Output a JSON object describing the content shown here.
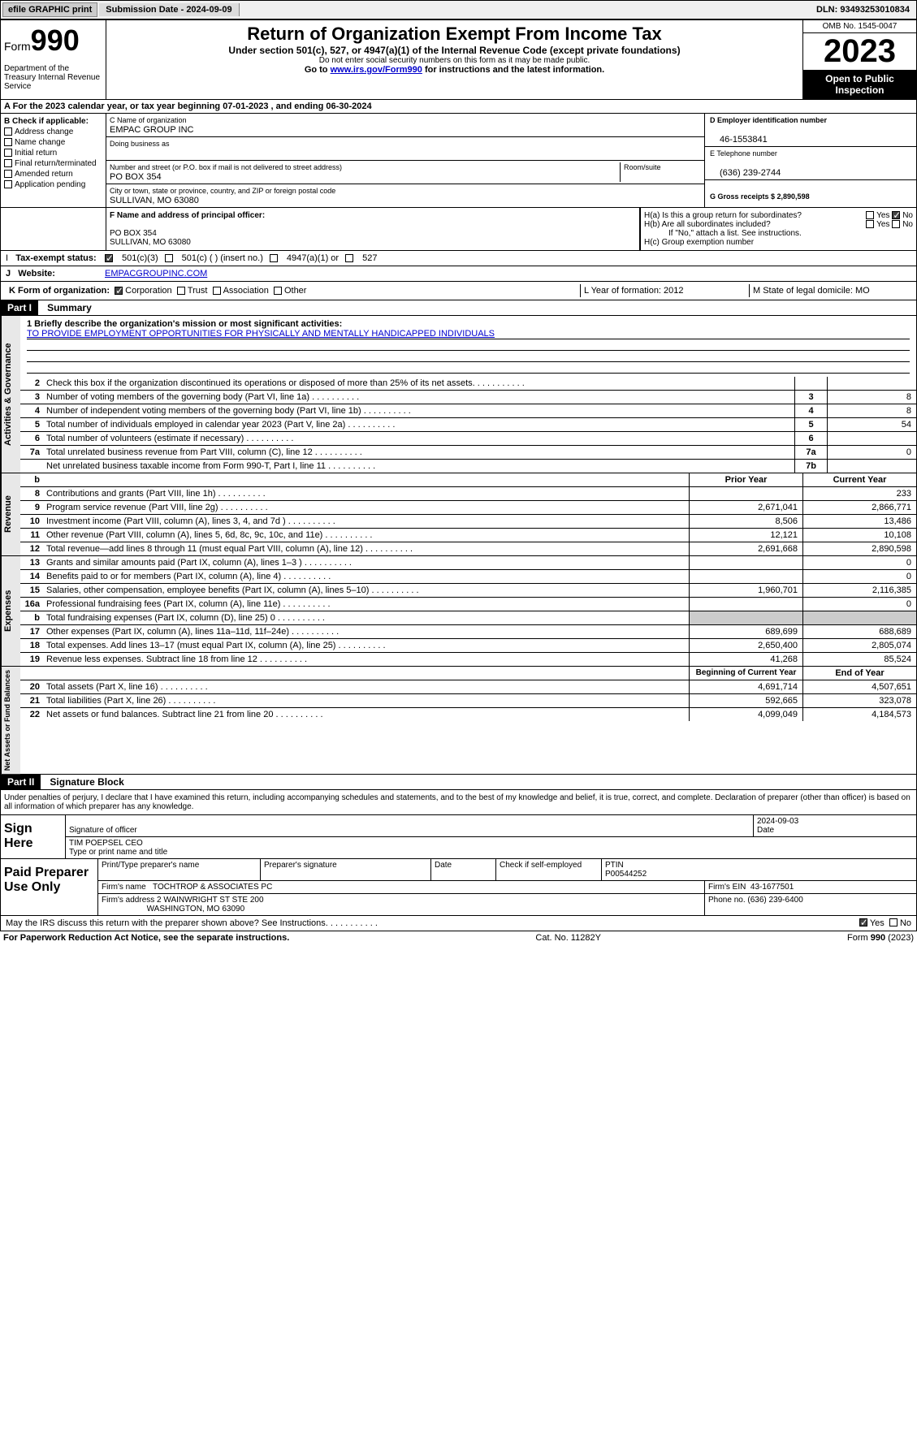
{
  "topbar": {
    "efile": "efile GRAPHIC print",
    "submission": "Submission Date - 2024-09-09",
    "dln": "DLN: 93493253010834"
  },
  "header": {
    "form_word": "Form",
    "form_no": "990",
    "title": "Return of Organization Exempt From Income Tax",
    "subtitle": "Under section 501(c), 527, or 4947(a)(1) of the Internal Revenue Code (except private foundations)",
    "note": "Do not enter social security numbers on this form as it may be made public.",
    "goto_pre": "Go to ",
    "goto_link": "www.irs.gov/Form990",
    "goto_post": " for instructions and the latest information.",
    "dept": "Department of the Treasury Internal Revenue Service",
    "omb": "OMB No. 1545-0047",
    "year": "2023",
    "openpub": "Open to Public Inspection"
  },
  "row_a": "A For the 2023 calendar year, or tax year beginning 07-01-2023   , and ending 06-30-2024",
  "col_b": {
    "hdr": "B Check if applicable:",
    "items": [
      "Address change",
      "Name change",
      "Initial return",
      "Final return/terminated",
      "Amended return",
      "Application pending"
    ]
  },
  "col_c": {
    "name_lbl": "C Name of organization",
    "name": "EMPAC GROUP INC",
    "dba_lbl": "Doing business as",
    "street_lbl": "Number and street (or P.O. box if mail is not delivered to street address)",
    "room_lbl": "Room/suite",
    "street": "PO BOX 354",
    "city_lbl": "City or town, state or province, country, and ZIP or foreign postal code",
    "city": "SULLIVAN, MO  63080"
  },
  "col_d": {
    "ein_lbl": "D Employer identification number",
    "ein": "46-1553841",
    "tel_lbl": "E Telephone number",
    "tel": "(636) 239-2744",
    "gross_lbl": "G Gross receipts $ 2,890,598"
  },
  "row_f": {
    "lbl": "F  Name and address of principal officer:",
    "addr1": "PO BOX 354",
    "addr2": "SULLIVAN, MO  63080"
  },
  "row_h": {
    "ha": "H(a)  Is this a group return for subordinates?",
    "hb": "H(b)  Are all subordinates included?",
    "hb_note": "If \"No,\" attach a list. See instructions.",
    "hc": "H(c)  Group exemption number",
    "yes": "Yes",
    "no": "No"
  },
  "row_i": {
    "lbl": "Tax-exempt status:",
    "o1": "501(c)(3)",
    "o2": "501(c) (  ) (insert no.)",
    "o3": "4947(a)(1) or",
    "o4": "527"
  },
  "row_j": {
    "lbl": "Website:",
    "val": "EMPACGROUPINC.COM"
  },
  "row_k": {
    "lbl": "K Form of organization:",
    "o1": "Corporation",
    "o2": "Trust",
    "o3": "Association",
    "o4": "Other",
    "yof_lbl": "L Year of formation: 2012",
    "dom_lbl": "M State of legal domicile: MO"
  },
  "parts": {
    "p1": "Part I",
    "p1_t": "Summary",
    "p2": "Part II",
    "p2_t": "Signature Block"
  },
  "mission": {
    "lbl": "1   Briefly describe the organization's mission or most significant activities:",
    "text": "TO PROVIDE EMPLOYMENT OPPORTUNITIES FOR PHYSICALLY AND MENTALLY HANDICAPPED INDIVIDUALS"
  },
  "gov_lines": [
    {
      "n": "2",
      "t": "Check this box      if the organization discontinued its operations or disposed of more than 25% of its net assets.",
      "bn": "",
      "v": ""
    },
    {
      "n": "3",
      "t": "Number of voting members of the governing body (Part VI, line 1a)",
      "bn": "3",
      "v": "8"
    },
    {
      "n": "4",
      "t": "Number of independent voting members of the governing body (Part VI, line 1b)",
      "bn": "4",
      "v": "8"
    },
    {
      "n": "5",
      "t": "Total number of individuals employed in calendar year 2023 (Part V, line 2a)",
      "bn": "5",
      "v": "54"
    },
    {
      "n": "6",
      "t": "Total number of volunteers (estimate if necessary)",
      "bn": "6",
      "v": ""
    },
    {
      "n": "7a",
      "t": "Total unrelated business revenue from Part VIII, column (C), line 12",
      "bn": "7a",
      "v": "0"
    },
    {
      "n": "",
      "t": "Net unrelated business taxable income from Form 990-T, Part I, line 11",
      "bn": "7b",
      "v": ""
    }
  ],
  "rev_hdr": {
    "b": "b",
    "py": "Prior Year",
    "cy": "Current Year"
  },
  "rev_lines": [
    {
      "n": "8",
      "t": "Contributions and grants (Part VIII, line 1h)",
      "py": "",
      "cy": "233"
    },
    {
      "n": "9",
      "t": "Program service revenue (Part VIII, line 2g)",
      "py": "2,671,041",
      "cy": "2,866,771"
    },
    {
      "n": "10",
      "t": "Investment income (Part VIII, column (A), lines 3, 4, and 7d )",
      "py": "8,506",
      "cy": "13,486"
    },
    {
      "n": "11",
      "t": "Other revenue (Part VIII, column (A), lines 5, 6d, 8c, 9c, 10c, and 11e)",
      "py": "12,121",
      "cy": "10,108"
    },
    {
      "n": "12",
      "t": "Total revenue—add lines 8 through 11 (must equal Part VIII, column (A), line 12)",
      "py": "2,691,668",
      "cy": "2,890,598"
    }
  ],
  "exp_lines": [
    {
      "n": "13",
      "t": "Grants and similar amounts paid (Part IX, column (A), lines 1–3 )",
      "py": "",
      "cy": "0"
    },
    {
      "n": "14",
      "t": "Benefits paid to or for members (Part IX, column (A), line 4)",
      "py": "",
      "cy": "0"
    },
    {
      "n": "15",
      "t": "Salaries, other compensation, employee benefits (Part IX, column (A), lines 5–10)",
      "py": "1,960,701",
      "cy": "2,116,385"
    },
    {
      "n": "16a",
      "t": "Professional fundraising fees (Part IX, column (A), line 11e)",
      "py": "",
      "cy": "0"
    },
    {
      "n": "b",
      "t": "Total fundraising expenses (Part IX, column (D), line 25) 0",
      "py": "shade",
      "cy": "shade"
    },
    {
      "n": "17",
      "t": "Other expenses (Part IX, column (A), lines 11a–11d, 11f–24e)",
      "py": "689,699",
      "cy": "688,689"
    },
    {
      "n": "18",
      "t": "Total expenses. Add lines 13–17 (must equal Part IX, column (A), line 25)",
      "py": "2,650,400",
      "cy": "2,805,074"
    },
    {
      "n": "19",
      "t": "Revenue less expenses. Subtract line 18 from line 12",
      "py": "41,268",
      "cy": "85,524"
    }
  ],
  "net_hdr": {
    "bcy": "Beginning of Current Year",
    "eoy": "End of Year"
  },
  "net_lines": [
    {
      "n": "20",
      "t": "Total assets (Part X, line 16)",
      "py": "4,691,714",
      "cy": "4,507,651"
    },
    {
      "n": "21",
      "t": "Total liabilities (Part X, line 26)",
      "py": "592,665",
      "cy": "323,078"
    },
    {
      "n": "22",
      "t": "Net assets or fund balances. Subtract line 21 from line 20",
      "py": "4,099,049",
      "cy": "4,184,573"
    }
  ],
  "sidelabels": {
    "gov": "Activities & Governance",
    "rev": "Revenue",
    "exp": "Expenses",
    "net": "Net Assets or Fund Balances"
  },
  "part2_text": "Under penalties of perjury, I declare that I have examined this return, including accompanying schedules and statements, and to the best of my knowledge and belief, it is true, correct, and complete. Declaration of preparer (other than officer) is based on all information of which preparer has any knowledge.",
  "sign": {
    "lbl": "Sign Here",
    "sig_lbl": "Signature of officer",
    "date_lbl": "Date",
    "date": "2024-09-03",
    "name": "TIM POEPSEL CEO",
    "name_lbl": "Type or print name and title"
  },
  "prep": {
    "lbl": "Paid Preparer Use Only",
    "name_lbl": "Print/Type preparer's name",
    "sig_lbl": "Preparer's signature",
    "date_lbl": "Date",
    "self_lbl": "Check       if self-employed",
    "ptin_lbl": "PTIN",
    "ptin": "P00544252",
    "firm_name_lbl": "Firm's name",
    "firm_name": "TOCHTROP & ASSOCIATES PC",
    "firm_ein_lbl": "Firm's EIN",
    "firm_ein": "43-1677501",
    "firm_addr_lbl": "Firm's address",
    "firm_addr1": "2 WAINWRIGHT ST STE 200",
    "firm_addr2": "WASHINGTON, MO  63090",
    "phone_lbl": "Phone no.",
    "phone": "(636) 239-6400"
  },
  "discuss": {
    "q": "May the IRS discuss this return with the preparer shown above? See Instructions.",
    "yes": "Yes",
    "no": "No"
  },
  "footer": {
    "l": "For Paperwork Reduction Act Notice, see the separate instructions.",
    "m": "Cat. No. 11282Y",
    "r": "Form 990 (2023)"
  }
}
